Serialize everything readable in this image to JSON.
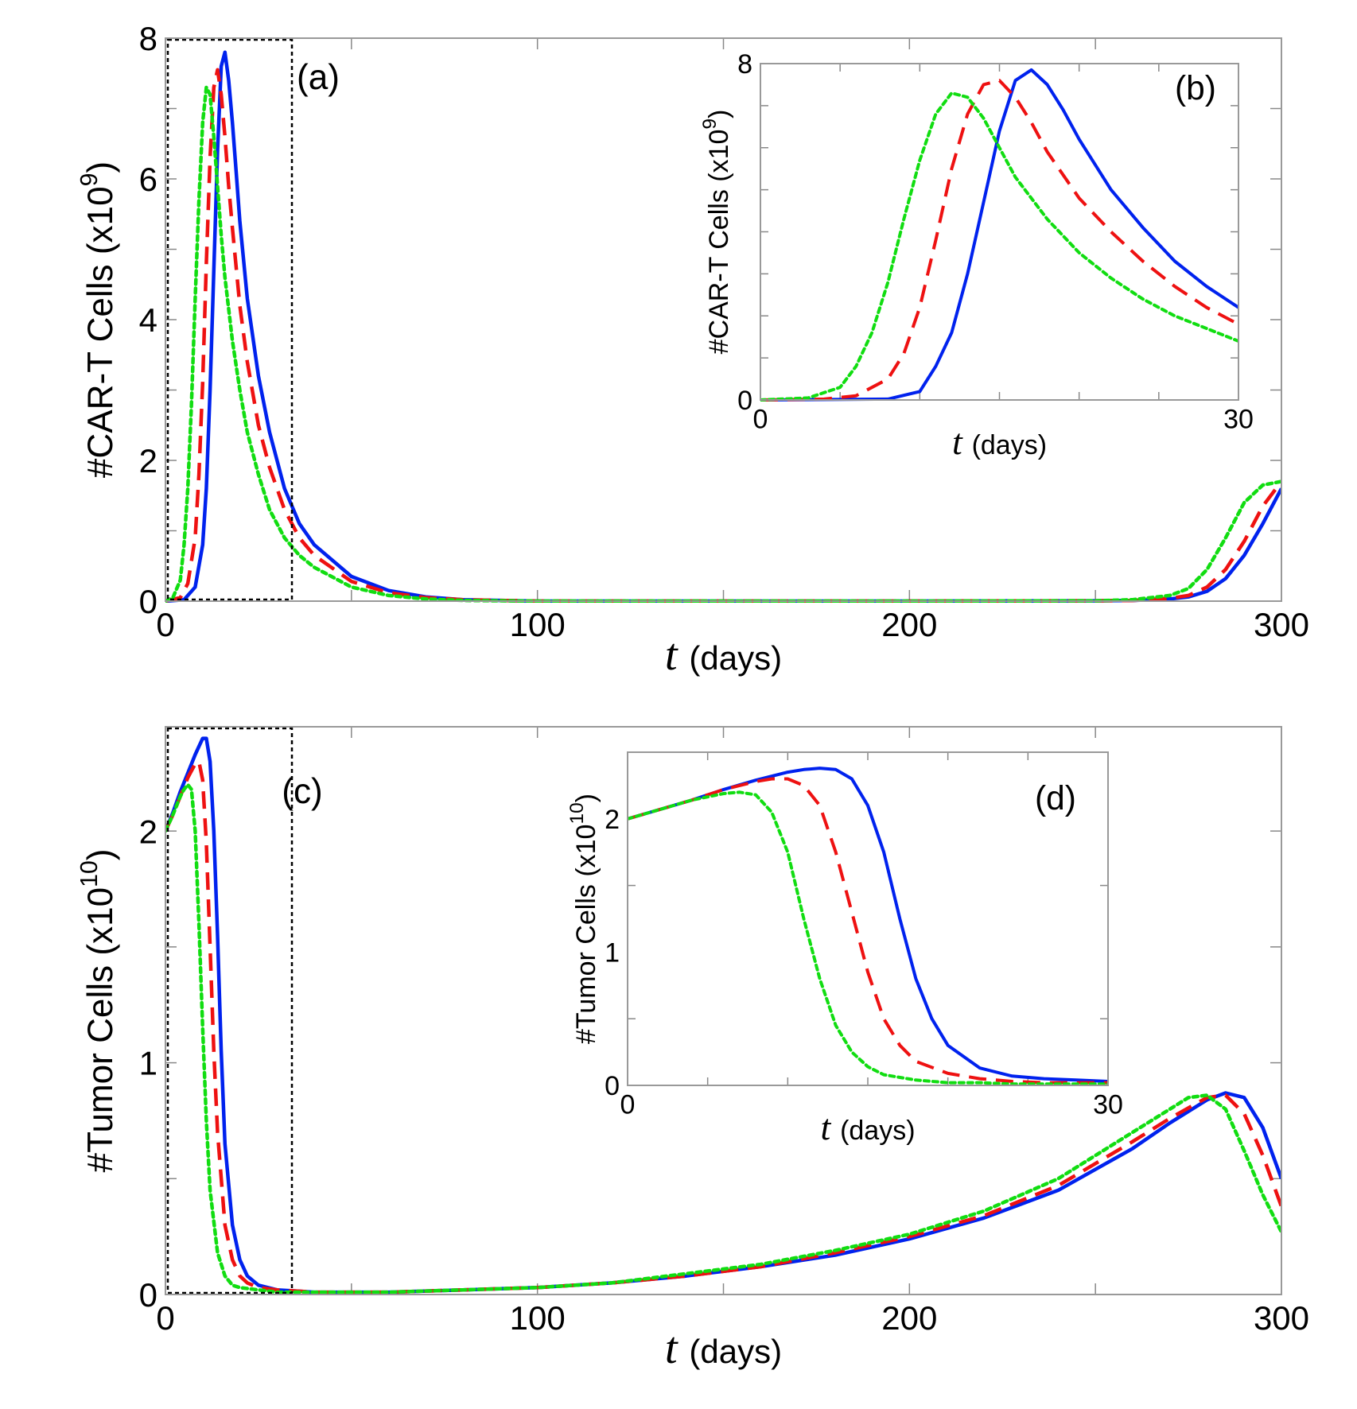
{
  "colors": {
    "blue": "#0022ee",
    "red": "#ee1111",
    "green": "#11dd11",
    "axis": "#000000",
    "tick": "#888888"
  },
  "chart_data": [
    {
      "id": "a",
      "type": "line",
      "panel_label": "(a)",
      "ylabel": "#CAR-T Cells (x10",
      "ylabel_exp": "9",
      "ylabel_close": ")",
      "xlabel_var": "t",
      "xlabel_unit": "(days)",
      "xlim": [
        0,
        300
      ],
      "ylim": [
        0,
        8
      ],
      "xticks": [
        0,
        100,
        200,
        300
      ],
      "xtick_labels": [
        "0",
        "100",
        "200",
        "300"
      ],
      "yticks": [
        0,
        2,
        4,
        6,
        8
      ],
      "ytick_labels": [
        "0",
        "2",
        "4",
        "6",
        "8"
      ],
      "minor_xticks": [
        50,
        150,
        250
      ],
      "minor_yticks": [
        1,
        3,
        5,
        7
      ],
      "zoom_box": {
        "x": [
          0,
          34
        ],
        "y": [
          0,
          8
        ]
      },
      "series": [
        {
          "name": "blue-solid",
          "color": "blue",
          "dash": "solid",
          "x": [
            0,
            5,
            8,
            10,
            11,
            12,
            13,
            14,
            15,
            16,
            17,
            18,
            19,
            20,
            22,
            25,
            28,
            32,
            36,
            40,
            50,
            60,
            70,
            80,
            100,
            150,
            200,
            250,
            260,
            270,
            275,
            280,
            285,
            290,
            295,
            300
          ],
          "y": [
            0,
            0.02,
            0.2,
            0.8,
            1.6,
            3.0,
            4.7,
            6.4,
            7.6,
            7.8,
            7.4,
            6.8,
            6.1,
            5.4,
            4.3,
            3.2,
            2.4,
            1.6,
            1.1,
            0.8,
            0.35,
            0.15,
            0.06,
            0.02,
            0,
            0,
            0,
            0.005,
            0.01,
            0.03,
            0.06,
            0.14,
            0.32,
            0.65,
            1.1,
            1.6
          ]
        },
        {
          "name": "red-dashed",
          "color": "red",
          "dash": "dashed",
          "x": [
            0,
            4,
            6,
            8,
            9,
            10,
            11,
            12,
            13,
            14,
            15,
            16,
            17,
            18,
            20,
            22,
            25,
            28,
            32,
            36,
            40,
            50,
            60,
            70,
            80,
            100,
            150,
            200,
            250,
            260,
            270,
            275,
            280,
            285,
            290,
            295,
            300
          ],
          "y": [
            0,
            0.05,
            0.25,
            0.9,
            1.8,
            3.1,
            4.8,
            6.3,
            7.3,
            7.55,
            7.2,
            6.6,
            5.9,
            5.3,
            4.2,
            3.4,
            2.5,
            1.9,
            1.3,
            0.9,
            0.65,
            0.28,
            0.12,
            0.05,
            0.02,
            0,
            0,
            0,
            0.005,
            0.01,
            0.04,
            0.08,
            0.2,
            0.45,
            0.85,
            1.35,
            1.7
          ]
        },
        {
          "name": "green-dotted",
          "color": "green",
          "dash": "dotted",
          "x": [
            0,
            2,
            4,
            5,
            6,
            7,
            8,
            9,
            10,
            11,
            12,
            13,
            14,
            15,
            16,
            18,
            20,
            22,
            25,
            28,
            32,
            36,
            40,
            50,
            60,
            70,
            80,
            100,
            150,
            200,
            250,
            260,
            270,
            275,
            280,
            285,
            290,
            295,
            300
          ],
          "y": [
            0,
            0.05,
            0.3,
            0.8,
            1.6,
            2.8,
            4.3,
            5.7,
            6.8,
            7.3,
            7.2,
            6.6,
            5.9,
            5.2,
            4.6,
            3.7,
            3.0,
            2.4,
            1.8,
            1.3,
            0.9,
            0.65,
            0.48,
            0.2,
            0.08,
            0.03,
            0.01,
            0,
            0,
            0,
            0.005,
            0.02,
            0.08,
            0.18,
            0.45,
            0.9,
            1.4,
            1.65,
            1.7
          ]
        }
      ]
    },
    {
      "id": "b",
      "type": "line",
      "panel_label": "(b)",
      "ylabel": "#CAR-T Cells (x10",
      "ylabel_exp": "9",
      "ylabel_close": ")",
      "xlabel_var": "t",
      "xlabel_unit": "(days)",
      "xlim": [
        0,
        30
      ],
      "ylim": [
        0,
        8
      ],
      "xtick_labels_pos": [
        0,
        30
      ],
      "xtick_labels": [
        "0",
        "30"
      ],
      "ytick_labels_pos": [
        0,
        8
      ],
      "ytick_labels": [
        "0",
        "8"
      ],
      "minor_xticks": [
        5,
        10,
        15,
        20,
        25
      ],
      "minor_yticks": [
        1,
        2,
        3,
        4,
        5,
        6,
        7
      ],
      "series": [
        {
          "name": "blue-solid",
          "color": "blue",
          "dash": "solid",
          "x": [
            0,
            8,
            10,
            11,
            12,
            13,
            14,
            15,
            16,
            17,
            18,
            19,
            20,
            22,
            24,
            26,
            28,
            30
          ],
          "y": [
            0,
            0.02,
            0.2,
            0.8,
            1.6,
            3.0,
            4.7,
            6.4,
            7.6,
            7.85,
            7.5,
            6.9,
            6.2,
            5.0,
            4.1,
            3.3,
            2.7,
            2.2
          ]
        },
        {
          "name": "red-dashed",
          "color": "red",
          "dash": "dashed",
          "x": [
            0,
            4,
            6,
            8,
            9,
            10,
            11,
            12,
            13,
            14,
            15,
            16,
            17,
            18,
            20,
            22,
            24,
            26,
            28,
            30
          ],
          "y": [
            0,
            0.02,
            0.1,
            0.5,
            1.1,
            2.2,
            3.8,
            5.5,
            6.8,
            7.5,
            7.6,
            7.2,
            6.6,
            5.9,
            4.8,
            4.0,
            3.3,
            2.7,
            2.2,
            1.8
          ]
        },
        {
          "name": "green-dotted",
          "color": "green",
          "dash": "dotted",
          "x": [
            0,
            3,
            5,
            6,
            7,
            8,
            9,
            10,
            11,
            12,
            13,
            14,
            15,
            16,
            18,
            20,
            22,
            24,
            26,
            28,
            30
          ],
          "y": [
            0,
            0.05,
            0.3,
            0.8,
            1.6,
            2.8,
            4.3,
            5.7,
            6.8,
            7.3,
            7.2,
            6.7,
            6.0,
            5.3,
            4.3,
            3.5,
            2.9,
            2.4,
            2.0,
            1.7,
            1.4
          ]
        }
      ]
    },
    {
      "id": "c",
      "type": "line",
      "panel_label": "(c)",
      "ylabel": "#Tumor Cells (x10",
      "ylabel_exp": "10",
      "ylabel_close": ")",
      "xlabel_var": "t",
      "xlabel_unit": "(days)",
      "xlim": [
        0,
        300
      ],
      "ylim": [
        0,
        2.45
      ],
      "xticks": [
        0,
        100,
        200,
        300
      ],
      "xtick_labels": [
        "0",
        "100",
        "200",
        "300"
      ],
      "yticks": [
        0,
        1,
        2
      ],
      "ytick_labels": [
        "0",
        "1",
        "2"
      ],
      "minor_xticks": [
        50,
        150,
        250
      ],
      "minor_yticks": [
        0.5,
        1.5
      ],
      "zoom_box": {
        "x": [
          0,
          34
        ],
        "y": [
          0,
          2.45
        ]
      },
      "series": [
        {
          "name": "blue-solid",
          "color": "blue",
          "dash": "solid",
          "x": [
            0,
            2,
            4,
            6,
            8,
            10,
            11,
            12,
            13,
            14,
            15,
            16,
            18,
            20,
            22,
            25,
            30,
            40,
            50,
            60,
            80,
            100,
            120,
            140,
            160,
            180,
            200,
            220,
            240,
            260,
            270,
            280,
            285,
            290,
            295,
            300
          ],
          "y": [
            2.0,
            2.08,
            2.17,
            2.25,
            2.33,
            2.4,
            2.4,
            2.3,
            2.0,
            1.55,
            1.05,
            0.65,
            0.3,
            0.15,
            0.08,
            0.04,
            0.02,
            0.01,
            0.01,
            0.01,
            0.02,
            0.03,
            0.05,
            0.08,
            0.12,
            0.17,
            0.24,
            0.33,
            0.45,
            0.63,
            0.74,
            0.84,
            0.87,
            0.85,
            0.72,
            0.5
          ]
        },
        {
          "name": "red-dashed",
          "color": "red",
          "dash": "dashed",
          "x": [
            0,
            2,
            4,
            6,
            8,
            9,
            10,
            11,
            12,
            13,
            14,
            16,
            18,
            20,
            22,
            25,
            30,
            40,
            50,
            60,
            80,
            100,
            120,
            140,
            160,
            180,
            200,
            220,
            240,
            260,
            270,
            280,
            285,
            290,
            295,
            300
          ],
          "y": [
            2.0,
            2.07,
            2.15,
            2.23,
            2.29,
            2.3,
            2.22,
            1.95,
            1.5,
            1.05,
            0.7,
            0.3,
            0.15,
            0.08,
            0.05,
            0.03,
            0.02,
            0.01,
            0.01,
            0.01,
            0.02,
            0.03,
            0.05,
            0.08,
            0.12,
            0.18,
            0.25,
            0.34,
            0.47,
            0.66,
            0.76,
            0.85,
            0.86,
            0.78,
            0.6,
            0.38
          ]
        },
        {
          "name": "green-dotted",
          "color": "green",
          "dash": "dotted",
          "x": [
            0,
            2,
            4,
            5,
            6,
            7,
            8,
            9,
            10,
            11,
            12,
            14,
            16,
            18,
            20,
            25,
            30,
            40,
            50,
            60,
            80,
            100,
            120,
            140,
            160,
            180,
            200,
            220,
            240,
            260,
            270,
            275,
            280,
            285,
            290,
            295,
            300
          ],
          "y": [
            2.0,
            2.07,
            2.15,
            2.18,
            2.2,
            2.18,
            2.0,
            1.6,
            1.15,
            0.75,
            0.45,
            0.18,
            0.08,
            0.04,
            0.03,
            0.02,
            0.01,
            0.01,
            0.01,
            0.01,
            0.02,
            0.03,
            0.05,
            0.09,
            0.13,
            0.19,
            0.26,
            0.36,
            0.5,
            0.7,
            0.8,
            0.85,
            0.86,
            0.8,
            0.62,
            0.43,
            0.27
          ]
        }
      ]
    },
    {
      "id": "d",
      "type": "line",
      "panel_label": "(d)",
      "ylabel": "#Tumor Cells (x10",
      "ylabel_exp": "10",
      "ylabel_close": ")",
      "xlabel_var": "t",
      "xlabel_unit": "(days)",
      "xlim": [
        0,
        30
      ],
      "ylim": [
        0,
        2.5
      ],
      "xtick_labels_pos": [
        0,
        30
      ],
      "xtick_labels": [
        "0",
        "30"
      ],
      "ytick_labels_pos": [
        0,
        1,
        2
      ],
      "ytick_labels": [
        "0",
        "1",
        "2"
      ],
      "minor_xticks": [
        5,
        10,
        15,
        20,
        25
      ],
      "minor_yticks": [
        0.5,
        1.5
      ],
      "series": [
        {
          "name": "blue-solid",
          "color": "blue",
          "dash": "solid",
          "x": [
            0,
            2,
            4,
            6,
            8,
            10,
            11,
            12,
            13,
            14,
            15,
            16,
            17,
            18,
            19,
            20,
            22,
            24,
            26,
            28,
            30
          ],
          "y": [
            2.0,
            2.07,
            2.14,
            2.22,
            2.29,
            2.35,
            2.37,
            2.38,
            2.37,
            2.3,
            2.1,
            1.75,
            1.25,
            0.8,
            0.5,
            0.3,
            0.13,
            0.07,
            0.05,
            0.04,
            0.03
          ]
        },
        {
          "name": "red-dashed",
          "color": "red",
          "dash": "dashed",
          "x": [
            0,
            2,
            4,
            6,
            8,
            9,
            10,
            11,
            12,
            13,
            14,
            15,
            16,
            17,
            18,
            20,
            22,
            24,
            26,
            28,
            30
          ],
          "y": [
            2.0,
            2.07,
            2.14,
            2.22,
            2.28,
            2.3,
            2.3,
            2.25,
            2.1,
            1.75,
            1.3,
            0.85,
            0.5,
            0.3,
            0.18,
            0.09,
            0.05,
            0.03,
            0.02,
            0.02,
            0.02
          ]
        },
        {
          "name": "green-dotted",
          "color": "green",
          "dash": "dotted",
          "x": [
            0,
            2,
            4,
            6,
            7,
            8,
            9,
            10,
            11,
            12,
            13,
            14,
            15,
            16,
            18,
            20,
            22,
            24,
            26,
            28,
            30
          ],
          "y": [
            2.0,
            2.07,
            2.14,
            2.19,
            2.2,
            2.18,
            2.05,
            1.75,
            1.25,
            0.8,
            0.45,
            0.25,
            0.14,
            0.08,
            0.04,
            0.02,
            0.02,
            0.01,
            0.01,
            0.01,
            0.01
          ]
        }
      ]
    }
  ]
}
